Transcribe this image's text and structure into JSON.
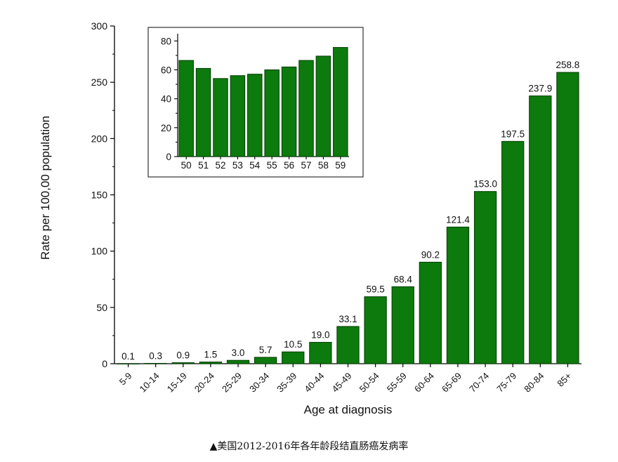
{
  "caption": "▲美国2012-2016年各年龄段结直肠癌发病率",
  "colors": {
    "bar": "#0c7a0c",
    "bar_stroke": "#053d05",
    "axis": "#000000"
  },
  "chart_data": [
    {
      "type": "bar",
      "xlabel": "Age at diagnosis",
      "ylabel": "Rate per 100,00 population",
      "ylim": [
        0,
        300
      ],
      "yticks": [
        0,
        50,
        100,
        150,
        200,
        250,
        300
      ],
      "categories": [
        "5-9",
        "10-14",
        "15-19",
        "20-24",
        "25-29",
        "30-34",
        "35-39",
        "40-44",
        "45-49",
        "50-54",
        "55-59",
        "60-64",
        "65-69",
        "70-74",
        "75-79",
        "80-84",
        "85+"
      ],
      "values": [
        0.1,
        0.3,
        0.9,
        1.5,
        3.0,
        5.7,
        10.5,
        19.0,
        33.1,
        59.5,
        68.4,
        90.2,
        121.4,
        153.0,
        197.5,
        237.9,
        258.8
      ],
      "data_labels": [
        "0.1",
        "0.3",
        "0.9",
        "1.5",
        "3.0",
        "5.7",
        "10.5",
        "19.0",
        "33.1",
        "59.5",
        "68.4",
        "90.2",
        "121.4",
        "153.0",
        "197.5",
        "237.9",
        "258.8"
      ],
      "grid": false
    },
    {
      "type": "bar",
      "inset": true,
      "xlabel": "",
      "ylabel": "",
      "ylim": [
        0,
        85
      ],
      "yticks": [
        0,
        20,
        40,
        60,
        80
      ],
      "categories": [
        "50",
        "51",
        "52",
        "53",
        "54",
        "55",
        "56",
        "57",
        "58",
        "59"
      ],
      "values": [
        66.5,
        61,
        54,
        56,
        57,
        60,
        62,
        66.5,
        69.5,
        75.5
      ],
      "grid": false
    }
  ]
}
